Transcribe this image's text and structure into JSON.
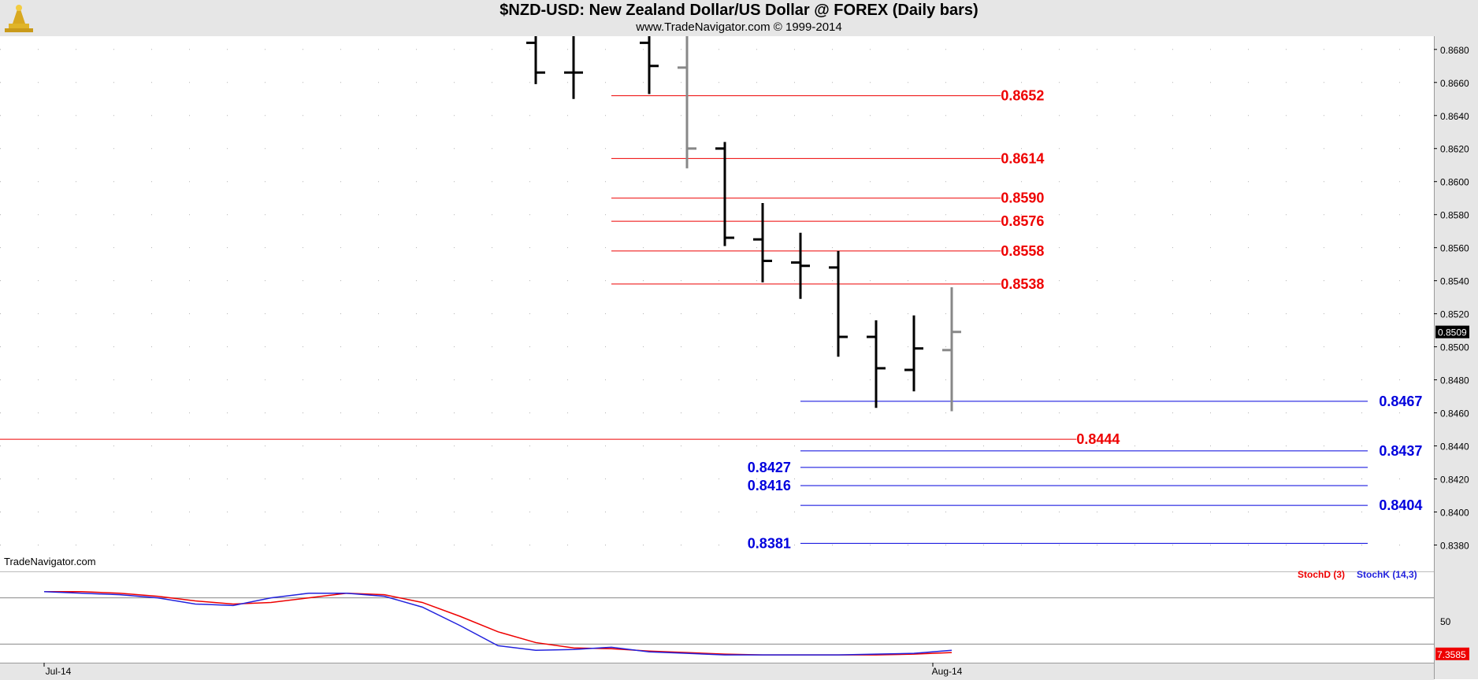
{
  "header": {
    "title": "$NZD-USD:  New Zealand Dollar/US Dollar @ FOREX  (Daily bars)",
    "subtitle": "www.TradeNavigator.com © 1999-2014"
  },
  "watermark": "TradeNavigator.com",
  "chart_data": [
    {
      "type": "ohlc",
      "title": "$NZD-USD:  New Zealand Dollar/US Dollar @ FOREX  (Daily bars)",
      "ylim": [
        0.8365,
        0.8688
      ],
      "y_ticks": [
        "0.8680",
        "0.8660",
        "0.8640",
        "0.8620",
        "0.8600",
        "0.8580",
        "0.8560",
        "0.8540",
        "0.8520",
        "0.8500",
        "0.8480",
        "0.8460",
        "0.8440",
        "0.8420",
        "0.8400",
        "0.8380"
      ],
      "last_price": "0.8509",
      "x_ticks": [
        {
          "label": "Jul-14",
          "bar": 0
        },
        {
          "label": "Aug-14",
          "bar": 23.5
        }
      ],
      "bars": [
        {
          "bar": 13,
          "open": 0.8684,
          "high": 0.87,
          "low": 0.8659,
          "close": 0.8666,
          "color": "#000000"
        },
        {
          "bar": 14,
          "open": 0.8666,
          "high": 0.87,
          "low": 0.865,
          "close": 0.8666,
          "color": "#000000"
        },
        {
          "bar": 16,
          "open": 0.8684,
          "high": 0.87,
          "low": 0.8653,
          "close": 0.867,
          "color": "#000000"
        },
        {
          "bar": 17,
          "open": 0.8669,
          "high": 0.8688,
          "low": 0.8608,
          "close": 0.862,
          "color": "#888888"
        },
        {
          "bar": 18,
          "open": 0.862,
          "high": 0.8624,
          "low": 0.8561,
          "close": 0.8566,
          "color": "#000000"
        },
        {
          "bar": 19,
          "open": 0.8565,
          "high": 0.8587,
          "low": 0.8539,
          "close": 0.8552,
          "color": "#000000"
        },
        {
          "bar": 20,
          "open": 0.8551,
          "high": 0.8569,
          "low": 0.8529,
          "close": 0.8549,
          "color": "#000000"
        },
        {
          "bar": 21,
          "open": 0.8548,
          "high": 0.8558,
          "low": 0.8494,
          "close": 0.8506,
          "color": "#000000"
        },
        {
          "bar": 22,
          "open": 0.8506,
          "high": 0.8516,
          "low": 0.8463,
          "close": 0.8487,
          "color": "#000000"
        },
        {
          "bar": 23,
          "open": 0.8486,
          "high": 0.8519,
          "low": 0.8473,
          "close": 0.8499,
          "color": "#000000"
        },
        {
          "bar": 24,
          "open": 0.8498,
          "high": 0.8536,
          "low": 0.8461,
          "close": 0.8509,
          "color": "#888888"
        }
      ],
      "levels": [
        {
          "label": "0.8652",
          "value": 0.8652,
          "color": "#ee0000",
          "from_bar": 15,
          "to_bar": 25.3,
          "label_at": "right",
          "label_bar": 25.3
        },
        {
          "label": "0.8614",
          "value": 0.8614,
          "color": "#ee0000",
          "from_bar": 15,
          "to_bar": 25.3,
          "label_at": "right",
          "label_bar": 25.3
        },
        {
          "label": "0.8590",
          "value": 0.859,
          "color": "#ee0000",
          "from_bar": 15,
          "to_bar": 25.3,
          "label_at": "right",
          "label_bar": 25.3
        },
        {
          "label": "0.8576",
          "value": 0.8576,
          "color": "#ee0000",
          "from_bar": 15,
          "to_bar": 25.3,
          "label_at": "right",
          "label_bar": 25.3
        },
        {
          "label": "0.8558",
          "value": 0.8558,
          "color": "#ee0000",
          "from_bar": 15,
          "to_bar": 25.3,
          "label_at": "right",
          "label_bar": 25.3
        },
        {
          "label": "0.8538",
          "value": 0.8538,
          "color": "#ee0000",
          "from_bar": 15,
          "to_bar": 25.3,
          "label_at": "right",
          "label_bar": 25.3
        },
        {
          "label": "0.8444",
          "value": 0.8444,
          "color": "#ee0000",
          "from_bar": -1.2,
          "to_bar": 27.3,
          "label_at": "right",
          "label_bar": 27.3
        },
        {
          "label": "0.8467",
          "value": 0.8467,
          "color": "#0000dd",
          "from_bar": 20,
          "to_bar": 35.0,
          "label_at": "right",
          "label_bar": 35.3
        },
        {
          "label": "0.8437",
          "value": 0.8437,
          "color": "#0000dd",
          "from_bar": 20,
          "to_bar": 35.0,
          "label_at": "right",
          "label_bar": 35.3
        },
        {
          "label": "0.8427",
          "value": 0.8427,
          "color": "#0000dd",
          "from_bar": 20,
          "to_bar": 35.0,
          "label_at": "left",
          "label_bar": 18.6
        },
        {
          "label": "0.8416",
          "value": 0.8416,
          "color": "#0000dd",
          "from_bar": 20,
          "to_bar": 35.0,
          "label_at": "left",
          "label_bar": 18.6
        },
        {
          "label": "0.8404",
          "value": 0.8404,
          "color": "#0000dd",
          "from_bar": 20,
          "to_bar": 35.0,
          "label_at": "right",
          "label_bar": 35.3
        },
        {
          "label": "0.8381",
          "value": 0.8381,
          "color": "#0000dd",
          "from_bar": 20,
          "to_bar": 35.0,
          "label_at": "left",
          "label_bar": 18.6
        }
      ]
    },
    {
      "type": "line",
      "title": "StochD (3) / StochK (14,3)",
      "ylim": [
        0,
        100
      ],
      "y_ticks": [
        "50"
      ],
      "reference_lines": [
        80,
        20
      ],
      "last_value": "7.3585",
      "x": [
        0,
        1,
        2,
        3,
        4,
        5,
        6,
        7,
        8,
        9,
        10,
        11,
        12,
        13,
        14,
        15,
        16,
        17,
        18,
        19,
        20,
        21,
        22,
        23,
        24
      ],
      "series": [
        {
          "name": "StochD (3)",
          "color": "#ee0000",
          "values": [
            88,
            88,
            86,
            82,
            76,
            72,
            74,
            80,
            86,
            84,
            74,
            56,
            36,
            22,
            15,
            14,
            11,
            9,
            7,
            6,
            6,
            6,
            6,
            7,
            9
          ]
        },
        {
          "name": "StochK (14,3)",
          "color": "#2222dd",
          "values": [
            88,
            86,
            84,
            80,
            72,
            70,
            80,
            86,
            86,
            82,
            68,
            44,
            18,
            12,
            13,
            16,
            10,
            8,
            6,
            6,
            6,
            6,
            7,
            8,
            12
          ]
        }
      ]
    }
  ]
}
